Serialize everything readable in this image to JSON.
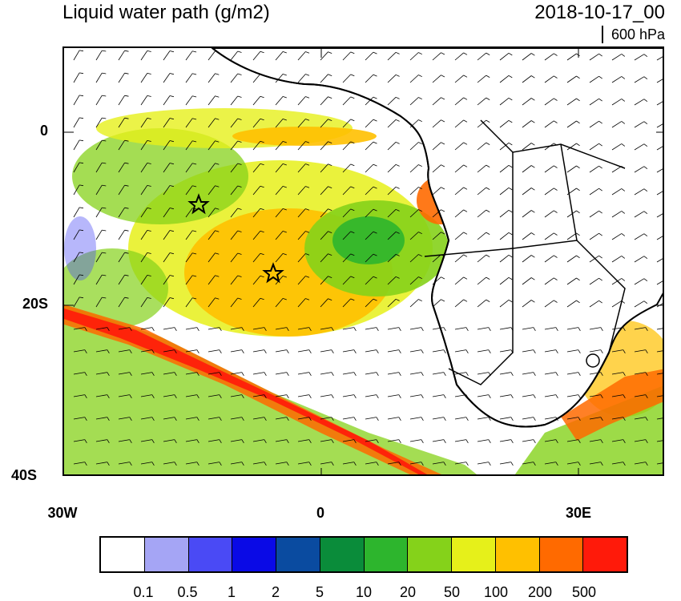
{
  "header": {
    "title": "Liquid water path (g/m2)",
    "datetime": "2018-10-17_00",
    "level": "600 hPa"
  },
  "map": {
    "lat_labels": [
      "0",
      "20S",
      "40S"
    ],
    "lon_labels": [
      "30W",
      "0",
      "30E"
    ],
    "stars_icon": "star-icon",
    "land_color": "#ffffff",
    "border_color": "#000000"
  },
  "colorbar": {
    "colors": [
      "#ffffff",
      "#a5a5f5",
      "#4a4af5",
      "#0a0ae6",
      "#0a4ba0",
      "#0a8c3a",
      "#2db52d",
      "#85d21a",
      "#e6f01a",
      "#ffc000",
      "#ff6a00",
      "#ff1a0a"
    ],
    "labels": [
      "0.1",
      "0.5",
      "1",
      "2",
      "5",
      "10",
      "20",
      "50",
      "100",
      "200",
      "500"
    ]
  }
}
